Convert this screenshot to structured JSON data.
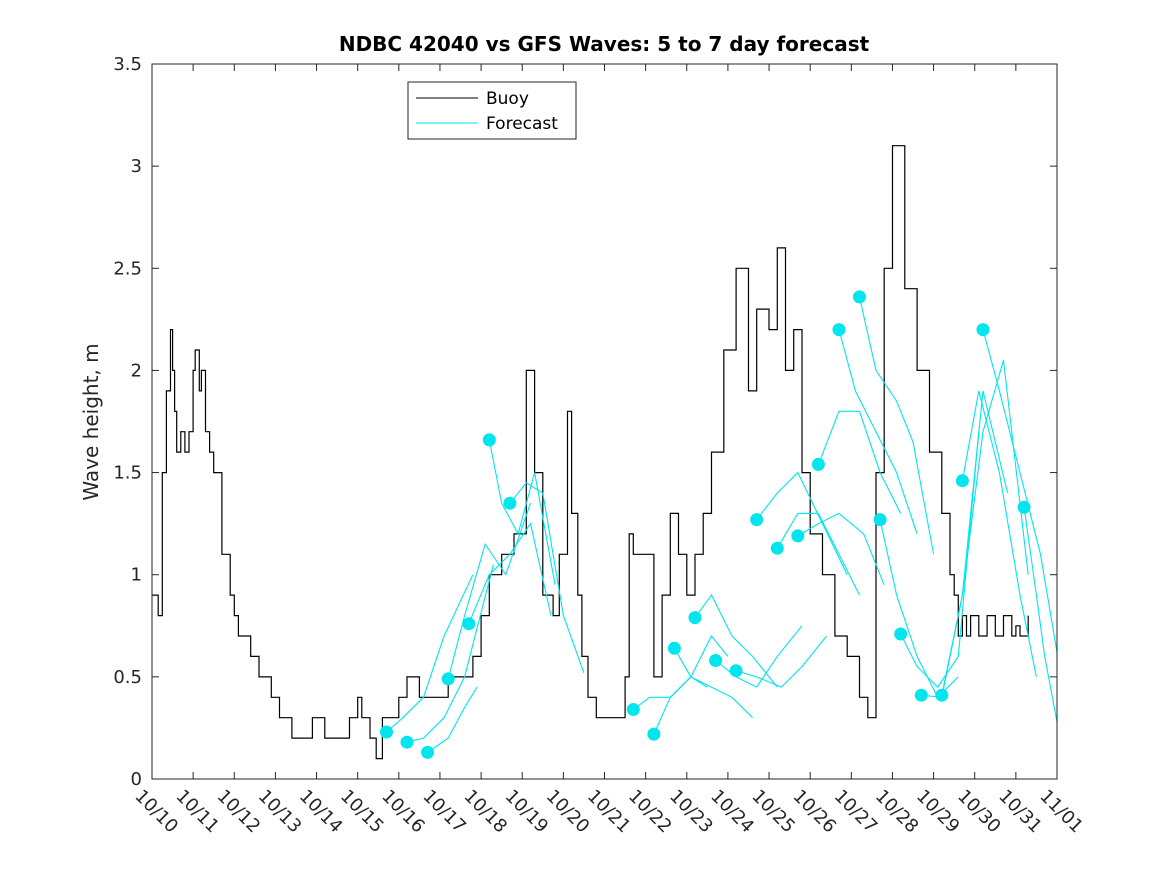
{
  "chart_data": {
    "type": "line",
    "title": "NDBC 42040 vs GFS Waves: 5 to 7 day forecast",
    "xlabel": "",
    "ylabel": "Wave height, m",
    "xlim": [
      0,
      22
    ],
    "ylim": [
      0,
      3.5
    ],
    "x_ticks": [
      0,
      1,
      2,
      3,
      4,
      5,
      6,
      7,
      8,
      9,
      10,
      11,
      12,
      13,
      14,
      15,
      16,
      17,
      18,
      19,
      20,
      21,
      22
    ],
    "x_tick_labels": [
      "10/10",
      "10/11",
      "10/12",
      "10/13",
      "10/14",
      "10/15",
      "10/16",
      "10/17",
      "10/18",
      "10/19",
      "10/20",
      "10/21",
      "10/22",
      "10/23",
      "10/24",
      "10/25",
      "10/26",
      "10/27",
      "10/28",
      "10/29",
      "10/30",
      "10/31",
      "11/01"
    ],
    "y_ticks": [
      0,
      0.5,
      1,
      1.5,
      2,
      2.5,
      3,
      3.5
    ],
    "y_tick_labels": [
      "0",
      "0.5",
      "1",
      "1.5",
      "2",
      "2.5",
      "3",
      "3.5"
    ],
    "x_unit": "days since 10/10",
    "legend": {
      "position": "top-left",
      "entries": [
        {
          "label": "Buoy",
          "color": "#000000"
        },
        {
          "label": "Forecast",
          "color": "#00e5ee"
        }
      ]
    },
    "colors": {
      "buoy": "#000000",
      "forecast": "#00e5ee"
    },
    "buoy": {
      "name": "Buoy",
      "x": [
        0,
        0.15,
        0.25,
        0.35,
        0.45,
        0.5,
        0.55,
        0.6,
        0.7,
        0.8,
        0.9,
        1.0,
        1.05,
        1.15,
        1.2,
        1.3,
        1.4,
        1.5,
        1.7,
        1.9,
        2.0,
        2.1,
        2.4,
        2.6,
        2.9,
        3.1,
        3.4,
        3.6,
        3.9,
        4.2,
        4.6,
        4.8,
        5.0,
        5.1,
        5.3,
        5.45,
        5.6,
        6.0,
        6.2,
        6.5,
        6.8,
        7.2,
        7.6,
        7.8,
        8.0,
        8.2,
        8.5,
        8.8,
        9.1,
        9.3,
        9.5,
        9.75,
        9.9,
        10.1,
        10.2,
        10.35,
        10.45,
        10.6,
        10.8,
        11.0,
        11.3,
        11.5,
        11.6,
        11.7,
        12.2,
        12.4,
        12.6,
        12.8,
        13.0,
        13.2,
        13.4,
        13.6,
        13.9,
        14.2,
        14.5,
        14.7,
        15.0,
        15.2,
        15.4,
        15.6,
        15.8,
        16.0,
        16.3,
        16.6,
        16.9,
        17.1,
        17.2,
        17.4,
        17.6,
        17.8,
        18.0,
        18.3,
        18.6,
        18.9,
        19.2,
        19.4,
        19.5,
        19.6,
        19.7,
        19.8,
        19.9,
        20.1,
        20.3,
        20.5,
        20.7,
        20.9,
        21.0,
        21.1,
        21.3
      ],
      "y": [
        0.9,
        0.8,
        1.5,
        1.9,
        2.2,
        2.0,
        1.8,
        1.6,
        1.7,
        1.6,
        1.7,
        2.0,
        2.1,
        1.9,
        2.0,
        1.7,
        1.6,
        1.5,
        1.1,
        0.9,
        0.8,
        0.7,
        0.6,
        0.5,
        0.4,
        0.3,
        0.2,
        0.2,
        0.3,
        0.2,
        0.2,
        0.3,
        0.4,
        0.3,
        0.2,
        0.1,
        0.3,
        0.4,
        0.5,
        0.4,
        0.4,
        0.5,
        0.5,
        0.6,
        0.8,
        1.0,
        1.1,
        1.2,
        2.0,
        1.5,
        0.9,
        0.8,
        1.1,
        1.8,
        1.3,
        0.9,
        0.6,
        0.4,
        0.3,
        0.3,
        0.3,
        0.5,
        1.2,
        1.1,
        0.5,
        0.9,
        1.3,
        1.1,
        0.9,
        1.1,
        1.3,
        1.6,
        2.1,
        2.5,
        1.9,
        2.3,
        2.2,
        2.6,
        2.0,
        2.2,
        1.5,
        1.2,
        1.0,
        0.7,
        0.6,
        0.6,
        0.4,
        0.3,
        1.5,
        2.5,
        3.1,
        2.4,
        2.0,
        1.6,
        1.3,
        1.0,
        0.9,
        0.7,
        0.8,
        0.7,
        0.8,
        0.7,
        0.8,
        0.7,
        0.8,
        0.7,
        0.75,
        0.7,
        0.8
      ]
    },
    "forecast_series": [
      {
        "name": "Forecast",
        "x": [
          5.7,
          6.1,
          6.6,
          7.1,
          7.8
        ],
        "y": [
          0.23,
          0.3,
          0.4,
          0.7,
          1.0
        ]
      },
      {
        "name": "Forecast",
        "x": [
          6.2,
          6.6,
          7.1,
          7.6,
          8.3
        ],
        "y": [
          0.18,
          0.2,
          0.3,
          0.5,
          1.05
        ]
      },
      {
        "name": "Forecast",
        "x": [
          6.7,
          7.2,
          7.6,
          7.9
        ],
        "y": [
          0.13,
          0.2,
          0.35,
          0.45
        ]
      },
      {
        "name": "Forecast",
        "x": [
          7.2,
          7.6,
          8.1,
          8.6,
          9.2
        ],
        "y": [
          0.49,
          0.8,
          1.15,
          1.0,
          1.35
        ]
      },
      {
        "name": "Forecast",
        "x": [
          7.7,
          8.2,
          8.7,
          9.2,
          9.7
        ],
        "y": [
          0.76,
          1.0,
          1.1,
          1.25,
          0.8
        ]
      },
      {
        "name": "Forecast",
        "x": [
          8.2,
          8.5,
          8.9,
          9.3,
          9.8
        ],
        "y": [
          1.66,
          1.35,
          1.2,
          1.5,
          0.95
        ]
      },
      {
        "name": "Forecast",
        "x": [
          8.7,
          9.1,
          9.5,
          10.0,
          10.5
        ],
        "y": [
          1.35,
          1.45,
          1.4,
          0.8,
          0.52
        ]
      },
      {
        "name": "Forecast",
        "x": [
          11.7,
          12.1,
          12.6,
          13.1,
          13.5
        ],
        "y": [
          0.34,
          0.4,
          0.4,
          0.5,
          0.45
        ]
      },
      {
        "name": "Forecast",
        "x": [
          12.2,
          12.6,
          13.1,
          13.6,
          14.0
        ],
        "y": [
          0.22,
          0.4,
          0.5,
          0.7,
          0.6
        ]
      },
      {
        "name": "Forecast",
        "x": [
          12.7,
          13.1,
          13.6,
          14.1,
          14.6
        ],
        "y": [
          0.64,
          0.5,
          0.45,
          0.4,
          0.3
        ]
      },
      {
        "name": "Forecast",
        "x": [
          13.2,
          13.6,
          14.1,
          14.6,
          15.2
        ],
        "y": [
          0.79,
          0.9,
          0.7,
          0.6,
          0.45
        ]
      },
      {
        "name": "Forecast",
        "x": [
          13.7,
          14.2,
          14.7,
          15.2,
          15.8
        ],
        "y": [
          0.58,
          0.5,
          0.45,
          0.6,
          0.75
        ]
      },
      {
        "name": "Forecast",
        "x": [
          14.2,
          14.7,
          15.3,
          15.8,
          16.4
        ],
        "y": [
          0.53,
          0.5,
          0.45,
          0.55,
          0.7
        ]
      },
      {
        "name": "Forecast",
        "x": [
          14.7,
          15.2,
          15.7,
          16.3,
          16.9
        ],
        "y": [
          1.27,
          1.4,
          1.5,
          1.25,
          1.0
        ]
      },
      {
        "name": "Forecast",
        "x": [
          15.2,
          15.7,
          16.2,
          16.7,
          17.2
        ],
        "y": [
          1.13,
          1.3,
          1.3,
          1.1,
          0.9
        ]
      },
      {
        "name": "Forecast",
        "x": [
          15.7,
          16.2,
          16.7,
          17.3,
          17.8
        ],
        "y": [
          1.19,
          1.25,
          1.3,
          1.2,
          0.95
        ]
      },
      {
        "name": "Forecast",
        "x": [
          16.2,
          16.7,
          17.2,
          17.7,
          18.2
        ],
        "y": [
          1.54,
          1.8,
          1.8,
          1.5,
          1.3
        ]
      },
      {
        "name": "Forecast",
        "x": [
          16.7,
          17.1,
          17.6,
          18.1,
          18.6
        ],
        "y": [
          2.2,
          1.9,
          1.7,
          1.5,
          1.2
        ]
      },
      {
        "name": "Forecast",
        "x": [
          17.2,
          17.6,
          18.1,
          18.5,
          19.0
        ],
        "y": [
          2.36,
          2.0,
          1.85,
          1.65,
          1.1
        ]
      },
      {
        "name": "Forecast",
        "x": [
          17.7,
          18.1,
          18.6,
          19.1,
          19.6
        ],
        "y": [
          1.27,
          0.9,
          0.6,
          0.4,
          0.5
        ]
      },
      {
        "name": "Forecast",
        "x": [
          18.2,
          18.6,
          19.1,
          19.6,
          20.1
        ],
        "y": [
          0.71,
          0.55,
          0.45,
          0.6,
          1.7
        ]
      },
      {
        "name": "Forecast",
        "x": [
          18.7,
          19.2,
          19.7,
          20.2,
          20.8
        ],
        "y": [
          0.41,
          0.4,
          0.9,
          1.9,
          1.4
        ]
      },
      {
        "name": "Forecast",
        "x": [
          19.2,
          19.7,
          20.2,
          20.7,
          21.3
        ],
        "y": [
          0.41,
          0.9,
          1.7,
          2.05,
          1.0
        ]
      },
      {
        "name": "Forecast",
        "x": [
          19.7,
          20.1,
          20.6,
          21.1,
          21.5
        ],
        "y": [
          1.46,
          1.9,
          1.5,
          0.9,
          0.5
        ]
      },
      {
        "name": "Forecast",
        "x": [
          20.2,
          20.6,
          21.1,
          21.6,
          22.0
        ],
        "y": [
          2.2,
          1.9,
          1.5,
          1.1,
          0.62
        ]
      },
      {
        "name": "Forecast",
        "x": [
          21.2,
          21.5,
          21.7,
          22.0
        ],
        "y": [
          1.33,
          0.9,
          0.6,
          0.28
        ]
      }
    ]
  }
}
